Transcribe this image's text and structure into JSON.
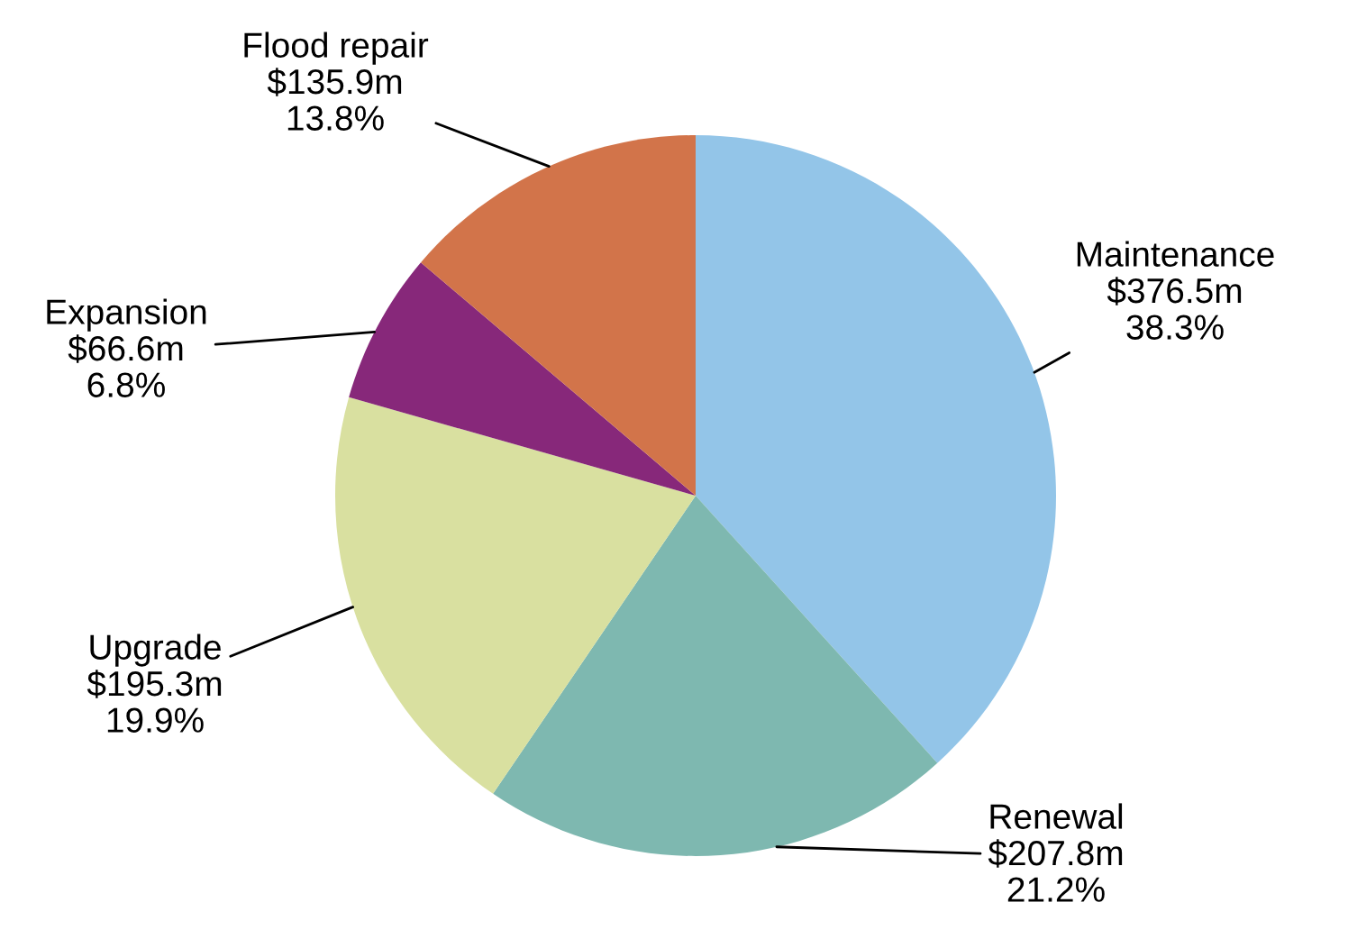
{
  "chart_data": {
    "type": "pie",
    "categories": [
      "Maintenance",
      "Renewal",
      "Upgrade",
      "Expansion",
      "Flood repair"
    ],
    "values": [
      38.3,
      21.2,
      19.9,
      6.8,
      13.8
    ],
    "colors": [
      "#93c5e8",
      "#7eb8b0",
      "#d9e0a0",
      "#87287a",
      "#d2744a"
    ],
    "value_labels": [
      "$376.5m\n38.3%",
      "$207.8m\n21.2%",
      "$195.3m\n19.9%",
      "$66.6m\n6.8%",
      "$135.9m\n13.8%"
    ],
    "legend": false
  }
}
